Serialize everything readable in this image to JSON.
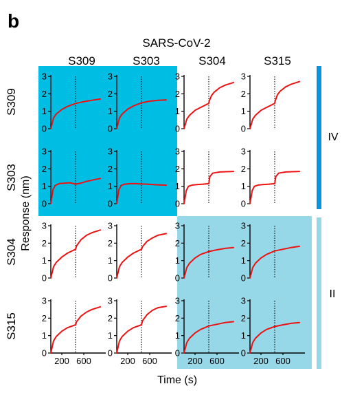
{
  "figure": {
    "panel_letter": "b",
    "title": "SARS-CoV-2",
    "xlabel": "Time (s)",
    "ylabel": "Response (nm)",
    "group_labels": [
      "IV",
      "II"
    ]
  },
  "colors": {
    "trace": "#ee1111",
    "group_iv_background": "#00bde3",
    "group_ii_background": "#96d8e8",
    "group_iv_bar": "#0a93dd",
    "group_ii_bar": "#96d8e8"
  },
  "chart_data": {
    "type": "line",
    "title": "SARS-CoV-2",
    "xlabel": "Time (s)",
    "ylabel": "Response (nm)",
    "row_labels": [
      "S309",
      "S303",
      "S304",
      "S315"
    ],
    "column_labels": [
      "S309",
      "S303",
      "S304",
      "S315"
    ],
    "x_ticks": [
      200,
      600
    ],
    "y_ticks": [
      0,
      1,
      2,
      3
    ],
    "xlim": [
      0,
      1000
    ],
    "ylim": [
      0,
      3
    ],
    "switch_time": 450,
    "grid": false,
    "groups": [
      {
        "label": "IV",
        "rows": [
          "S309",
          "S303"
        ],
        "columns": [
          "S309",
          "S303"
        ]
      },
      {
        "label": "II",
        "rows": [
          "S304",
          "S315"
        ],
        "columns": [
          "S304",
          "S315"
        ]
      }
    ],
    "panels": [
      {
        "row": "S309",
        "column": "S309",
        "x": [
          0,
          50,
          100,
          200,
          300,
          450,
          600,
          750,
          900
        ],
        "y": [
          0,
          0.62,
          0.85,
          1.1,
          1.27,
          1.45,
          1.55,
          1.63,
          1.7
        ]
      },
      {
        "row": "S309",
        "column": "S303",
        "x": [
          0,
          50,
          100,
          200,
          300,
          450,
          600,
          750,
          900
        ],
        "y": [
          0,
          0.62,
          0.85,
          1.12,
          1.3,
          1.48,
          1.58,
          1.63,
          1.65
        ]
      },
      {
        "row": "S309",
        "column": "S304",
        "x": [
          0,
          50,
          100,
          200,
          300,
          450,
          460,
          500,
          550,
          650,
          750,
          900
        ],
        "y": [
          0,
          0.55,
          0.77,
          1.05,
          1.22,
          1.45,
          1.6,
          1.9,
          2.1,
          2.35,
          2.5,
          2.65
        ]
      },
      {
        "row": "S309",
        "column": "S315",
        "x": [
          0,
          50,
          100,
          200,
          300,
          450,
          460,
          500,
          550,
          650,
          750,
          900
        ],
        "y": [
          0,
          0.55,
          0.77,
          1.05,
          1.22,
          1.45,
          1.6,
          1.95,
          2.15,
          2.4,
          2.55,
          2.7
        ]
      },
      {
        "row": "S303",
        "column": "S309",
        "x": [
          0,
          40,
          80,
          150,
          250,
          350,
          450,
          550,
          650,
          750,
          900
        ],
        "y": [
          0,
          0.8,
          1.05,
          1.15,
          1.18,
          1.2,
          1.12,
          1.18,
          1.28,
          1.35,
          1.45
        ]
      },
      {
        "row": "S303",
        "column": "S303",
        "x": [
          0,
          40,
          80,
          150,
          250,
          350,
          450,
          550,
          650,
          750,
          900
        ],
        "y": [
          0,
          0.8,
          1.05,
          1.12,
          1.15,
          1.15,
          1.13,
          1.12,
          1.1,
          1.08,
          1.06
        ]
      },
      {
        "row": "S303",
        "column": "S304",
        "x": [
          0,
          40,
          80,
          150,
          250,
          350,
          450,
          470,
          520,
          650,
          900
        ],
        "y": [
          0,
          0.75,
          1.0,
          1.07,
          1.1,
          1.12,
          1.15,
          1.55,
          1.75,
          1.82,
          1.85
        ]
      },
      {
        "row": "S303",
        "column": "S315",
        "x": [
          0,
          40,
          80,
          150,
          250,
          350,
          450,
          470,
          520,
          650,
          900
        ],
        "y": [
          0,
          0.75,
          1.0,
          1.07,
          1.1,
          1.12,
          1.15,
          1.55,
          1.75,
          1.82,
          1.85
        ]
      },
      {
        "row": "S304",
        "column": "S309",
        "x": [
          0,
          50,
          100,
          200,
          300,
          450,
          470,
          550,
          650,
          750,
          900
        ],
        "y": [
          0,
          0.65,
          0.9,
          1.2,
          1.42,
          1.65,
          1.85,
          2.2,
          2.45,
          2.6,
          2.75
        ]
      },
      {
        "row": "S304",
        "column": "S303",
        "x": [
          0,
          50,
          100,
          200,
          300,
          450,
          470,
          550,
          650,
          750,
          900
        ],
        "y": [
          0,
          0.65,
          0.9,
          1.2,
          1.42,
          1.65,
          1.8,
          2.1,
          2.3,
          2.45,
          2.55
        ]
      },
      {
        "row": "S304",
        "column": "S304",
        "x": [
          0,
          50,
          100,
          200,
          300,
          450,
          600,
          750,
          900
        ],
        "y": [
          0,
          0.6,
          0.85,
          1.15,
          1.35,
          1.52,
          1.62,
          1.7,
          1.75
        ]
      },
      {
        "row": "S304",
        "column": "S315",
        "x": [
          0,
          50,
          100,
          200,
          300,
          450,
          600,
          750,
          900
        ],
        "y": [
          0,
          0.6,
          0.85,
          1.15,
          1.35,
          1.55,
          1.65,
          1.75,
          1.82
        ]
      },
      {
        "row": "S315",
        "column": "S309",
        "x": [
          0,
          50,
          100,
          200,
          300,
          450,
          470,
          550,
          650,
          750,
          900
        ],
        "y": [
          0,
          0.7,
          0.95,
          1.25,
          1.45,
          1.62,
          1.8,
          2.12,
          2.35,
          2.5,
          2.65
        ]
      },
      {
        "row": "S315",
        "column": "S303",
        "x": [
          0,
          50,
          100,
          200,
          300,
          450,
          470,
          550,
          650,
          750,
          900
        ],
        "y": [
          0,
          0.7,
          0.95,
          1.25,
          1.45,
          1.62,
          1.85,
          2.2,
          2.45,
          2.6,
          2.68
        ]
      },
      {
        "row": "S315",
        "column": "S304",
        "x": [
          0,
          50,
          100,
          200,
          300,
          450,
          600,
          750,
          900
        ],
        "y": [
          0,
          0.6,
          0.85,
          1.15,
          1.35,
          1.55,
          1.65,
          1.75,
          1.8
        ]
      },
      {
        "row": "S315",
        "column": "S315",
        "x": [
          0,
          50,
          100,
          200,
          300,
          450,
          600,
          750,
          900
        ],
        "y": [
          0,
          0.6,
          0.85,
          1.15,
          1.35,
          1.52,
          1.62,
          1.7,
          1.75
        ]
      }
    ]
  }
}
